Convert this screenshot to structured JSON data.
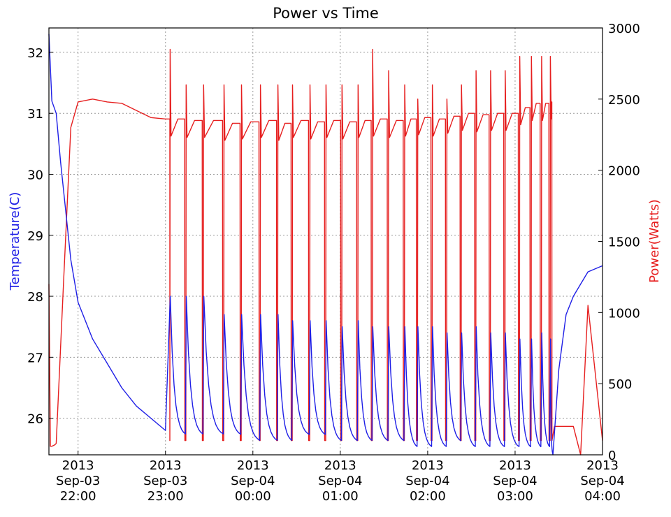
{
  "chart_data": {
    "type": "line",
    "title": "Power vs Time",
    "xlabel": "",
    "ylabel": "Temperature(C)",
    "y2label": "Power(Watts)",
    "x_start": "2013-09-03 21:40",
    "x_end": "2013-09-04 04:00",
    "x_ticks": [
      {
        "year": "2013",
        "date": "Sep-03",
        "time": "22:00"
      },
      {
        "year": "2013",
        "date": "Sep-03",
        "time": "23:00"
      },
      {
        "year": "2013",
        "date": "Sep-04",
        "time": "00:00"
      },
      {
        "year": "2013",
        "date": "Sep-04",
        "time": "01:00"
      },
      {
        "year": "2013",
        "date": "Sep-04",
        "time": "02:00"
      },
      {
        "year": "2013",
        "date": "Sep-04",
        "time": "03:00"
      },
      {
        "year": "2013",
        "date": "Sep-04",
        "time": "04:00"
      }
    ],
    "ylim": [
      25.4,
      32.4
    ],
    "y_ticks": [
      26,
      27,
      28,
      29,
      30,
      31,
      32
    ],
    "y2lim": [
      0,
      3000
    ],
    "y2_ticks": [
      0,
      500,
      1000,
      1500,
      2000,
      2500,
      3000
    ],
    "grid": true,
    "colors": {
      "temperature": "#1f1fe6",
      "power": "#e61f1f"
    },
    "series": [
      {
        "axis": "left",
        "color": "#1f1fe6",
        "x": [
          "21:40",
          "21:42",
          "21:45",
          "21:48",
          "21:55",
          "22:00",
          "22:10",
          "22:20",
          "22:30",
          "22:40",
          "22:50",
          "23:00",
          "23:04",
          "23:06",
          "23:08",
          "23:10",
          "23:14",
          "23:15",
          "23:17",
          "23:19",
          "23:20",
          "23:22",
          "23:26",
          "23:27",
          "23:29",
          "23:31",
          "23:32",
          "23:35",
          "23:40",
          "23:45",
          "23:47",
          "23:49",
          "23:52",
          "23:55",
          "00:00",
          "00:10",
          "00:13",
          "00:15",
          "00:22",
          "00:25",
          "00:30",
          "00:40",
          "00:50",
          "01:00",
          "01:10",
          "01:20",
          "01:30",
          "01:40",
          "01:50",
          "02:00",
          "02:10",
          "02:20",
          "02:30",
          "02:40",
          "02:50",
          "03:00",
          "03:10",
          "03:20",
          "03:26",
          "03:30",
          "03:35",
          "03:40",
          "03:45",
          "03:50",
          "04:00"
        ],
        "y": [
          32.3,
          31.2,
          31.0,
          30.2,
          28.6,
          27.9,
          27.3,
          26.9,
          26.5,
          26.2,
          26.0,
          25.8,
          27.9,
          26.8,
          26.2,
          25.9,
          25.7,
          27.9,
          26.8,
          26.2,
          25.9,
          25.8,
          27.9,
          26.8,
          26.3,
          26.0,
          25.9,
          25.8,
          27.7,
          26.5,
          26.0,
          25.9,
          25.8,
          25.7,
          27.7,
          27.7,
          26.5,
          26.0,
          25.8,
          25.7,
          27.7,
          27.6,
          27.6,
          27.6,
          27.5,
          27.5,
          27.5,
          27.5,
          27.5,
          27.5,
          27.4,
          27.4,
          27.4,
          27.3,
          27.3,
          27.3,
          27.3,
          27.3,
          25.4,
          26.8,
          27.7,
          28.0,
          28.2,
          28.4,
          28.5
        ]
      },
      {
        "axis": "right",
        "color": "#e61f1f",
        "x": [
          "21:40",
          "21:41",
          "21:42",
          "21:44",
          "21:45",
          "21:50",
          "21:55",
          "22:00",
          "22:10",
          "22:20",
          "22:30",
          "22:40",
          "22:50",
          "23:00",
          "23:03",
          "23:04",
          "23:05",
          "23:10",
          "23:15",
          "23:20",
          "23:30",
          "23:40",
          "23:50",
          "00:00",
          "00:10",
          "00:20",
          "00:30",
          "00:40",
          "00:50",
          "01:00",
          "01:10",
          "01:20",
          "01:30",
          "01:40",
          "01:50",
          "02:00",
          "02:10",
          "02:20",
          "02:30",
          "02:40",
          "02:50",
          "03:00",
          "03:10",
          "03:20",
          "03:26",
          "03:27",
          "03:35",
          "03:40",
          "03:45",
          "03:50",
          "04:00"
        ],
        "y": [
          1200,
          60,
          60,
          70,
          80,
          1200,
          2300,
          2480,
          2500,
          2480,
          2470,
          2420,
          2370,
          2360,
          2360,
          2850,
          2230,
          2330,
          2350,
          2330,
          2350,
          2330,
          2350,
          2340,
          2350,
          2330,
          2350,
          2340,
          2350,
          2360,
          2340,
          2350,
          2360,
          2350,
          2360,
          2370,
          2360,
          2380,
          2400,
          2390,
          2400,
          2400,
          2440,
          2470,
          2480,
          200,
          200,
          200,
          0,
          1050,
          100
        ]
      }
    ],
    "cycles": {
      "start": [
        "23:03",
        "23:14",
        "23:26",
        "23:40",
        "23:52",
        "00:05",
        "00:17",
        "00:27",
        "00:39",
        "00:50",
        "01:01",
        "01:12",
        "01:22",
        "01:33",
        "01:44",
        "01:53",
        "02:03",
        "02:13",
        "02:23",
        "02:33",
        "02:43",
        "02:53",
        "03:03",
        "03:11",
        "03:18",
        "03:24"
      ],
      "power_peak": [
        2850,
        2600,
        2600,
        2600,
        2600,
        2600,
        2600,
        2600,
        2600,
        2600,
        2600,
        2600,
        2850,
        2700,
        2600,
        2500,
        2600,
        2500,
        2600,
        2700,
        2700,
        2700,
        2800,
        2800,
        2800,
        2800
      ],
      "power_low": 100,
      "temp_peak": [
        28.0,
        28.0,
        28.0,
        27.7,
        27.7,
        27.7,
        27.7,
        27.6,
        27.6,
        27.6,
        27.5,
        27.6,
        27.5,
        27.5,
        27.5,
        27.5,
        27.5,
        27.4,
        27.4,
        27.5,
        27.4,
        27.4,
        27.3,
        27.3,
        27.4,
        27.3
      ],
      "temp_low": [
        25.7,
        25.7,
        25.7,
        25.7,
        25.6,
        25.6,
        25.6,
        25.7,
        25.7,
        25.6,
        25.6,
        25.6,
        25.6,
        25.6,
        25.5,
        25.5,
        25.5,
        25.6,
        25.5,
        25.5,
        25.5,
        25.5,
        25.5,
        25.5,
        25.5,
        25.4
      ]
    }
  }
}
